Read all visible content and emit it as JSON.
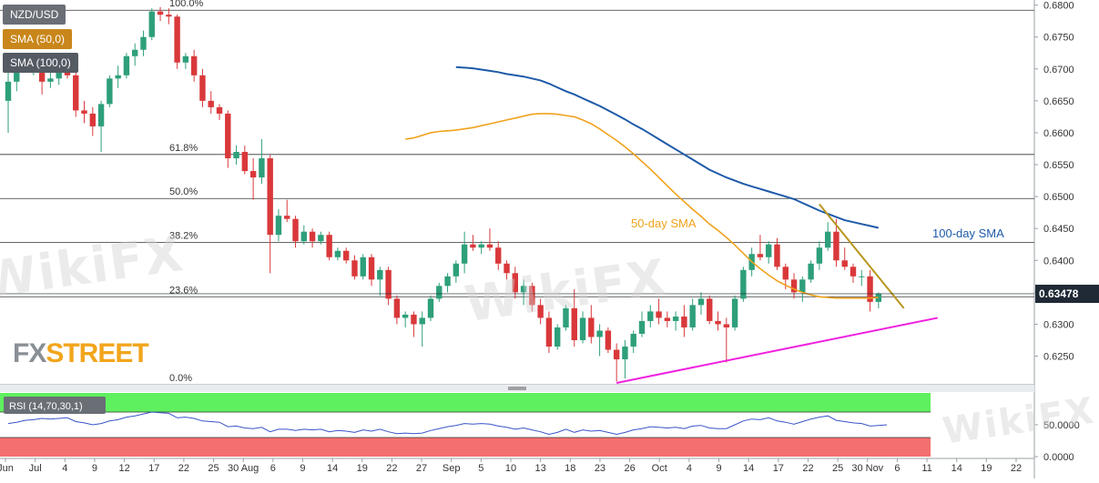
{
  "chart_data": {
    "type": "candlestick",
    "symbol": "NZD/USD",
    "current_price": "0.63478",
    "y_axis": {
      "ylim": [
        0.6208,
        0.6808
      ],
      "ticks": [
        "0.6800",
        "0.6750",
        "0.6700",
        "0.6650",
        "0.6600",
        "0.6550",
        "0.6500",
        "0.6450",
        "0.6400",
        "0.6350",
        "0.6300",
        "0.6250"
      ]
    },
    "x_axis": {
      "ticks": [
        "Jun",
        "Jul",
        "4",
        "9",
        "12",
        "17",
        "22",
        "25",
        "30 Aug",
        "6",
        "9",
        "14",
        "19",
        "22",
        "27",
        "Sep",
        "5",
        "10",
        "13",
        "18",
        "23",
        "26",
        "Oct",
        "4",
        "9",
        "14",
        "17",
        "22",
        "25",
        "30 Nov",
        "6",
        "11",
        "14",
        "19",
        "22"
      ]
    },
    "fibonacci_levels": [
      {
        "label": "100.0%",
        "value": 0.6792
      },
      {
        "label": "61.8%",
        "value": 0.6566
      },
      {
        "label": "50.0%",
        "value": 0.6497
      },
      {
        "label": "38.2%",
        "value": 0.6428
      },
      {
        "label": "23.6%",
        "value": 0.6343
      },
      {
        "label": "0.0%",
        "value": 0.6205
      }
    ],
    "indicators": [
      {
        "name": "SMA (50,0)",
        "annotation": "50-day SMA",
        "color": "#f0a21c"
      },
      {
        "name": "SMA (100,0)",
        "annotation": "100-day SMA",
        "color": "#1e5aa8"
      }
    ],
    "sma50": [
      0.659,
      0.6592,
      0.6596,
      0.66,
      0.6602,
      0.6603,
      0.6604,
      0.6606,
      0.6608,
      0.6611,
      0.6614,
      0.6617,
      0.662,
      0.6623,
      0.6626,
      0.6629,
      0.663,
      0.663,
      0.6629,
      0.6627,
      0.6625,
      0.662,
      0.6614,
      0.6606,
      0.6597,
      0.6588,
      0.6578,
      0.6567,
      0.6555,
      0.6543,
      0.653,
      0.6517,
      0.6504,
      0.6492,
      0.648,
      0.6469,
      0.6457,
      0.6447,
      0.6436,
      0.6424,
      0.6411,
      0.6398,
      0.6387,
      0.6377,
      0.6368,
      0.6361,
      0.6355,
      0.635,
      0.6346,
      0.6343,
      0.6342,
      0.6341,
      0.6341,
      0.6341,
      0.6341,
      0.6341,
      0.6342
    ],
    "sma100": [
      0.6703,
      0.6702,
      0.6701,
      0.6699,
      0.6697,
      0.6695,
      0.6692,
      0.669,
      0.6688,
      0.6685,
      0.6682,
      0.6677,
      0.6671,
      0.6665,
      0.666,
      0.6654,
      0.6648,
      0.6642,
      0.6635,
      0.6628,
      0.6621,
      0.6613,
      0.6606,
      0.6598,
      0.659,
      0.6582,
      0.6574,
      0.6566,
      0.6558,
      0.655,
      0.6542,
      0.6536,
      0.653,
      0.6525,
      0.652,
      0.6516,
      0.6512,
      0.6508,
      0.6504,
      0.65,
      0.6496,
      0.649,
      0.6484,
      0.6478,
      0.6473,
      0.6468,
      0.6463,
      0.646,
      0.6457,
      0.6454,
      0.6451
    ],
    "candles": [
      {
        "o": 0.665,
        "h": 0.67,
        "l": 0.66,
        "c": 0.668
      },
      {
        "o": 0.668,
        "h": 0.672,
        "l": 0.6665,
        "c": 0.6705
      },
      {
        "o": 0.6705,
        "h": 0.6712,
        "l": 0.6695,
        "c": 0.67
      },
      {
        "o": 0.67,
        "h": 0.6712,
        "l": 0.669,
        "c": 0.6705
      },
      {
        "o": 0.6705,
        "h": 0.671,
        "l": 0.666,
        "c": 0.668
      },
      {
        "o": 0.668,
        "h": 0.67,
        "l": 0.667,
        "c": 0.6685
      },
      {
        "o": 0.6685,
        "h": 0.671,
        "l": 0.6675,
        "c": 0.67
      },
      {
        "o": 0.67,
        "h": 0.6705,
        "l": 0.6685,
        "c": 0.669
      },
      {
        "o": 0.669,
        "h": 0.6695,
        "l": 0.6625,
        "c": 0.6635
      },
      {
        "o": 0.6635,
        "h": 0.665,
        "l": 0.6615,
        "c": 0.663
      },
      {
        "o": 0.663,
        "h": 0.664,
        "l": 0.6595,
        "c": 0.661
      },
      {
        "o": 0.661,
        "h": 0.665,
        "l": 0.657,
        "c": 0.6645
      },
      {
        "o": 0.6645,
        "h": 0.669,
        "l": 0.664,
        "c": 0.6685
      },
      {
        "o": 0.6685,
        "h": 0.6705,
        "l": 0.667,
        "c": 0.669
      },
      {
        "o": 0.669,
        "h": 0.6725,
        "l": 0.6685,
        "c": 0.672
      },
      {
        "o": 0.672,
        "h": 0.674,
        "l": 0.6705,
        "c": 0.673
      },
      {
        "o": 0.673,
        "h": 0.676,
        "l": 0.672,
        "c": 0.675
      },
      {
        "o": 0.675,
        "h": 0.6795,
        "l": 0.6745,
        "c": 0.679
      },
      {
        "o": 0.679,
        "h": 0.6797,
        "l": 0.6775,
        "c": 0.6785
      },
      {
        "o": 0.6785,
        "h": 0.6795,
        "l": 0.677,
        "c": 0.6782
      },
      {
        "o": 0.6782,
        "h": 0.6785,
        "l": 0.67,
        "c": 0.671
      },
      {
        "o": 0.671,
        "h": 0.6725,
        "l": 0.67,
        "c": 0.672
      },
      {
        "o": 0.672,
        "h": 0.673,
        "l": 0.668,
        "c": 0.669
      },
      {
        "o": 0.669,
        "h": 0.67,
        "l": 0.664,
        "c": 0.665
      },
      {
        "o": 0.665,
        "h": 0.6665,
        "l": 0.663,
        "c": 0.664
      },
      {
        "o": 0.664,
        "h": 0.6645,
        "l": 0.662,
        "c": 0.663
      },
      {
        "o": 0.663,
        "h": 0.6635,
        "l": 0.6545,
        "c": 0.656
      },
      {
        "o": 0.656,
        "h": 0.658,
        "l": 0.655,
        "c": 0.657
      },
      {
        "o": 0.657,
        "h": 0.658,
        "l": 0.6535,
        "c": 0.654
      },
      {
        "o": 0.654,
        "h": 0.656,
        "l": 0.6495,
        "c": 0.653
      },
      {
        "o": 0.653,
        "h": 0.659,
        "l": 0.652,
        "c": 0.656
      },
      {
        "o": 0.656,
        "h": 0.6565,
        "l": 0.638,
        "c": 0.644
      },
      {
        "o": 0.644,
        "h": 0.648,
        "l": 0.643,
        "c": 0.647
      },
      {
        "o": 0.647,
        "h": 0.6495,
        "l": 0.646,
        "c": 0.6465
      },
      {
        "o": 0.6465,
        "h": 0.647,
        "l": 0.642,
        "c": 0.643
      },
      {
        "o": 0.643,
        "h": 0.6455,
        "l": 0.6425,
        "c": 0.6445
      },
      {
        "o": 0.6445,
        "h": 0.645,
        "l": 0.642,
        "c": 0.643
      },
      {
        "o": 0.643,
        "h": 0.6445,
        "l": 0.6425,
        "c": 0.644
      },
      {
        "o": 0.644,
        "h": 0.6445,
        "l": 0.64,
        "c": 0.6405
      },
      {
        "o": 0.6405,
        "h": 0.642,
        "l": 0.64,
        "c": 0.6415
      },
      {
        "o": 0.6415,
        "h": 0.642,
        "l": 0.6395,
        "c": 0.64
      },
      {
        "o": 0.64,
        "h": 0.6408,
        "l": 0.637,
        "c": 0.6375
      },
      {
        "o": 0.6375,
        "h": 0.641,
        "l": 0.637,
        "c": 0.6405
      },
      {
        "o": 0.6405,
        "h": 0.641,
        "l": 0.636,
        "c": 0.637
      },
      {
        "o": 0.637,
        "h": 0.639,
        "l": 0.6345,
        "c": 0.6385
      },
      {
        "o": 0.6385,
        "h": 0.639,
        "l": 0.633,
        "c": 0.634
      },
      {
        "o": 0.634,
        "h": 0.6345,
        "l": 0.63,
        "c": 0.631
      },
      {
        "o": 0.631,
        "h": 0.632,
        "l": 0.6295,
        "c": 0.6315
      },
      {
        "o": 0.6315,
        "h": 0.632,
        "l": 0.628,
        "c": 0.63
      },
      {
        "o": 0.63,
        "h": 0.632,
        "l": 0.6265,
        "c": 0.631
      },
      {
        "o": 0.631,
        "h": 0.6345,
        "l": 0.6305,
        "c": 0.634
      },
      {
        "o": 0.634,
        "h": 0.6365,
        "l": 0.6335,
        "c": 0.636
      },
      {
        "o": 0.636,
        "h": 0.638,
        "l": 0.635,
        "c": 0.6375
      },
      {
        "o": 0.6375,
        "h": 0.64,
        "l": 0.6365,
        "c": 0.6395
      },
      {
        "o": 0.6395,
        "h": 0.6445,
        "l": 0.638,
        "c": 0.6425
      },
      {
        "o": 0.6425,
        "h": 0.644,
        "l": 0.6415,
        "c": 0.642
      },
      {
        "o": 0.642,
        "h": 0.643,
        "l": 0.641,
        "c": 0.6425
      },
      {
        "o": 0.6425,
        "h": 0.645,
        "l": 0.6415,
        "c": 0.642
      },
      {
        "o": 0.642,
        "h": 0.643,
        "l": 0.6385,
        "c": 0.6395
      },
      {
        "o": 0.6395,
        "h": 0.64,
        "l": 0.637,
        "c": 0.638
      },
      {
        "o": 0.638,
        "h": 0.639,
        "l": 0.634,
        "c": 0.635
      },
      {
        "o": 0.635,
        "h": 0.637,
        "l": 0.633,
        "c": 0.636
      },
      {
        "o": 0.636,
        "h": 0.6365,
        "l": 0.632,
        "c": 0.633
      },
      {
        "o": 0.633,
        "h": 0.634,
        "l": 0.63,
        "c": 0.631
      },
      {
        "o": 0.631,
        "h": 0.632,
        "l": 0.6255,
        "c": 0.6265
      },
      {
        "o": 0.6265,
        "h": 0.63,
        "l": 0.626,
        "c": 0.6295
      },
      {
        "o": 0.6295,
        "h": 0.633,
        "l": 0.629,
        "c": 0.6325
      },
      {
        "o": 0.6325,
        "h": 0.6355,
        "l": 0.6265,
        "c": 0.6275
      },
      {
        "o": 0.6275,
        "h": 0.632,
        "l": 0.627,
        "c": 0.631
      },
      {
        "o": 0.631,
        "h": 0.633,
        "l": 0.627,
        "c": 0.628
      },
      {
        "o": 0.628,
        "h": 0.63,
        "l": 0.625,
        "c": 0.629
      },
      {
        "o": 0.629,
        "h": 0.6295,
        "l": 0.6255,
        "c": 0.626
      },
      {
        "o": 0.626,
        "h": 0.627,
        "l": 0.621,
        "c": 0.6245
      },
      {
        "o": 0.6245,
        "h": 0.6275,
        "l": 0.6215,
        "c": 0.6265
      },
      {
        "o": 0.6265,
        "h": 0.629,
        "l": 0.6255,
        "c": 0.6285
      },
      {
        "o": 0.6285,
        "h": 0.632,
        "l": 0.628,
        "c": 0.6305
      },
      {
        "o": 0.6305,
        "h": 0.633,
        "l": 0.6295,
        "c": 0.632
      },
      {
        "o": 0.632,
        "h": 0.634,
        "l": 0.63,
        "c": 0.631
      },
      {
        "o": 0.631,
        "h": 0.632,
        "l": 0.6295,
        "c": 0.6305
      },
      {
        "o": 0.6305,
        "h": 0.632,
        "l": 0.629,
        "c": 0.6312
      },
      {
        "o": 0.6312,
        "h": 0.633,
        "l": 0.628,
        "c": 0.6295
      },
      {
        "o": 0.6295,
        "h": 0.634,
        "l": 0.629,
        "c": 0.633
      },
      {
        "o": 0.633,
        "h": 0.635,
        "l": 0.6315,
        "c": 0.634
      },
      {
        "o": 0.634,
        "h": 0.6345,
        "l": 0.63,
        "c": 0.6305
      },
      {
        "o": 0.6305,
        "h": 0.632,
        "l": 0.629,
        "c": 0.63
      },
      {
        "o": 0.63,
        "h": 0.631,
        "l": 0.624,
        "c": 0.6295
      },
      {
        "o": 0.6295,
        "h": 0.6345,
        "l": 0.629,
        "c": 0.634
      },
      {
        "o": 0.634,
        "h": 0.639,
        "l": 0.6335,
        "c": 0.6385
      },
      {
        "o": 0.6385,
        "h": 0.642,
        "l": 0.6375,
        "c": 0.641
      },
      {
        "o": 0.641,
        "h": 0.644,
        "l": 0.64,
        "c": 0.6405
      },
      {
        "o": 0.6405,
        "h": 0.643,
        "l": 0.6395,
        "c": 0.6425
      },
      {
        "o": 0.6425,
        "h": 0.6435,
        "l": 0.6385,
        "c": 0.639
      },
      {
        "o": 0.639,
        "h": 0.6395,
        "l": 0.6355,
        "c": 0.637
      },
      {
        "o": 0.637,
        "h": 0.638,
        "l": 0.634,
        "c": 0.635
      },
      {
        "o": 0.635,
        "h": 0.6375,
        "l": 0.6335,
        "c": 0.637
      },
      {
        "o": 0.637,
        "h": 0.64,
        "l": 0.6365,
        "c": 0.6395
      },
      {
        "o": 0.6395,
        "h": 0.643,
        "l": 0.6385,
        "c": 0.642
      },
      {
        "o": 0.642,
        "h": 0.646,
        "l": 0.6415,
        "c": 0.6445
      },
      {
        "o": 0.6445,
        "h": 0.6465,
        "l": 0.639,
        "c": 0.64
      },
      {
        "o": 0.64,
        "h": 0.642,
        "l": 0.6385,
        "c": 0.639
      },
      {
        "o": 0.639,
        "h": 0.6395,
        "l": 0.6365,
        "c": 0.6375
      },
      {
        "o": 0.6375,
        "h": 0.6385,
        "l": 0.636,
        "c": 0.6375
      },
      {
        "o": 0.6375,
        "h": 0.6385,
        "l": 0.632,
        "c": 0.6335
      },
      {
        "o": 0.6335,
        "h": 0.635,
        "l": 0.6325,
        "c": 0.6348
      }
    ],
    "trendlines": [
      {
        "name": "support",
        "color": "#f020e0",
        "start_index": 72,
        "start": 0.6208,
        "end_index": 110,
        "end": 0.631
      },
      {
        "name": "resistance",
        "color": "#b8961e",
        "start_index": 96,
        "start": 0.6488,
        "end_index": 106,
        "end": 0.6325
      }
    ],
    "rsi": {
      "name": "RSI (14,70,30,1)",
      "overbought": 70,
      "oversold": 30,
      "axis_ticks": [
        "50.0000",
        "0.0000"
      ],
      "values": [
        52,
        54,
        57,
        58,
        60,
        59,
        60,
        61,
        55,
        53,
        50,
        52,
        56,
        58,
        62,
        64,
        67,
        70,
        69,
        68,
        61,
        62,
        60,
        56,
        55,
        54,
        47,
        48,
        45,
        44,
        46,
        39,
        43,
        43,
        41,
        43,
        42,
        43,
        39,
        41,
        40,
        38,
        42,
        40,
        43,
        39,
        36,
        37,
        36,
        37,
        41,
        44,
        47,
        49,
        52,
        51,
        52,
        51,
        48,
        46,
        43,
        45,
        42,
        39,
        35,
        38,
        43,
        38,
        42,
        40,
        41,
        38,
        35,
        38,
        42,
        44,
        47,
        46,
        45,
        46,
        44,
        48,
        49,
        45,
        44,
        44,
        50,
        56,
        59,
        58,
        61,
        56,
        54,
        51,
        55,
        59,
        62,
        64,
        57,
        55,
        53,
        52,
        48,
        49,
        50
      ]
    },
    "bottom_ticks": [
      "Jun",
      "Jul",
      "4",
      "9",
      "12",
      "17",
      "22",
      "25",
      "30 Aug",
      "6",
      "9",
      "14",
      "19",
      "22",
      "27",
      "Sep",
      "5",
      "10",
      "13",
      "18",
      "23",
      "26",
      "Oct",
      "4",
      "9",
      "14",
      "17",
      "22",
      "25",
      "30 Nov",
      "6",
      "11",
      "14",
      "19",
      "22"
    ]
  },
  "colors": {
    "bull": "#2e9f7b",
    "bear": "#d9383a",
    "sma50": "#f0a21c",
    "sma100": "#1e5aa8",
    "rsi_line": "#3a54c8",
    "rsi_ob_fill": "#5ff05f",
    "rsi_os_fill": "#f47070",
    "price_tag_bg": "#1f2a36"
  },
  "legend": {
    "symbol": "NZD/USD",
    "sma50": "SMA (50,0)",
    "sma100": "SMA (100,0)"
  },
  "annotations": {
    "sma50": "50-day SMA",
    "sma100": "100-day SMA"
  },
  "logo": {
    "fx": "FX",
    "street": "STREET"
  },
  "watermark": "WikiFX"
}
